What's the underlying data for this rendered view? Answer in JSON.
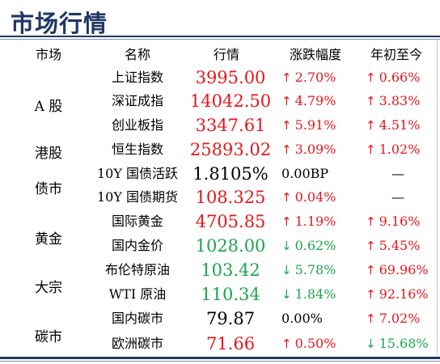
{
  "title": "市场行情",
  "headers": {
    "market": "市场",
    "name": "名称",
    "quote": "行情",
    "change": "涨跌幅度",
    "ytd": "年初至今"
  },
  "groups": [
    "A 股",
    "港股",
    "债市",
    "黄金",
    "大宗",
    "碳市"
  ],
  "rows": [
    {
      "name": "上证指数",
      "quote": "3995.00",
      "change": "2.70%",
      "change_dir": "up",
      "ytd": "0.66%",
      "ytd_dir": "up",
      "quote_color": "#e6161b"
    },
    {
      "name": "深证成指",
      "quote": "14042.50",
      "change": "4.79%",
      "change_dir": "up",
      "ytd": "3.83%",
      "ytd_dir": "up",
      "quote_color": "#e6161b"
    },
    {
      "name": "创业板指",
      "quote": "3347.61",
      "change": "5.91%",
      "change_dir": "up",
      "ytd": "4.51%",
      "ytd_dir": "up",
      "quote_color": "#e6161b"
    },
    {
      "name": "恒生指数",
      "quote": "25893.02",
      "change": "3.09%",
      "change_dir": "up",
      "ytd": "1.02%",
      "ytd_dir": "up",
      "quote_color": "#e6161b"
    },
    {
      "name": "10Y 国债活跃",
      "quote": "1.8105%",
      "change": "0.00BP",
      "change_dir": "none",
      "ytd": "—",
      "ytd_dir": "none",
      "quote_color": "#000000"
    },
    {
      "name": "10Y 国债期货",
      "quote": "108.325",
      "change": "0.04%",
      "change_dir": "up",
      "ytd": "—",
      "ytd_dir": "none",
      "quote_color": "#e6161b"
    },
    {
      "name": "国际黄金",
      "quote": "4705.85",
      "change": "1.19%",
      "change_dir": "up",
      "ytd": "9.16%",
      "ytd_dir": "up",
      "quote_color": "#e6161b"
    },
    {
      "name": "国内金价",
      "quote": "1028.00",
      "change": "0.62%",
      "change_dir": "down",
      "ytd": "5.45%",
      "ytd_dir": "up",
      "quote_color": "#1aa64b"
    },
    {
      "name": "布伦特原油",
      "quote": "103.42",
      "change": "5.78%",
      "change_dir": "down",
      "ytd": "69.96%",
      "ytd_dir": "up",
      "quote_color": "#1aa64b"
    },
    {
      "name": "WTI 原油",
      "quote": "110.34",
      "change": "1.84%",
      "change_dir": "down",
      "ytd": "92.16%",
      "ytd_dir": "up",
      "quote_color": "#1aa64b"
    },
    {
      "name": "国内碳市",
      "quote": "79.87",
      "change": "0.00%",
      "change_dir": "none",
      "ytd": "7.02%",
      "ytd_dir": "up",
      "quote_color": "#000000"
    },
    {
      "name": "欧洲碳市",
      "quote": "71.66",
      "change": "0.50%",
      "change_dir": "up",
      "ytd": "15.68%",
      "ytd_dir": "down",
      "quote_color": "#e6161b"
    }
  ],
  "icons": {
    "up": "arrow-up-icon",
    "down": "arrow-down-icon"
  }
}
